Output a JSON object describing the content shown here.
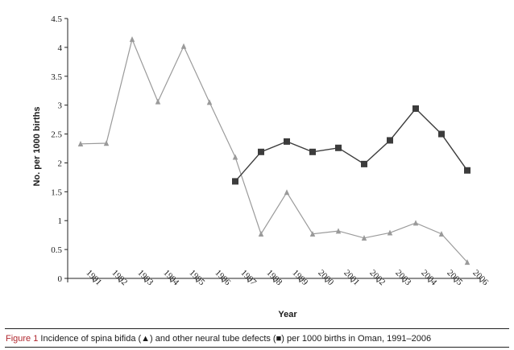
{
  "chart_data": {
    "type": "line",
    "title": "",
    "xlabel": "Year",
    "ylabel": "No. per 1000 births",
    "ylim": [
      0,
      4.5
    ],
    "y_ticks": [
      "0",
      "0.5",
      "1",
      "1.5",
      "2",
      "2.5",
      "3",
      "3.5",
      "4",
      "4.5"
    ],
    "categories": [
      "1991",
      "1992",
      "1993",
      "1994",
      "1995",
      "1996",
      "1997",
      "1998",
      "1999",
      "2000",
      "2001",
      "2002",
      "2003",
      "2004",
      "2005",
      "2006"
    ],
    "series": [
      {
        "marker": "triangle",
        "color": "#9a9a9a",
        "values": [
          2.33,
          2.34,
          4.14,
          3.06,
          4.02,
          3.05,
          2.1,
          0.77,
          1.49,
          0.77,
          0.82,
          0.7,
          0.79,
          0.96,
          0.77,
          0.28
        ]
      },
      {
        "marker": "square",
        "color": "#3c3c3c",
        "values": [
          null,
          null,
          null,
          null,
          null,
          null,
          1.68,
          2.19,
          2.37,
          2.19,
          2.26,
          1.98,
          2.39,
          2.94,
          2.5,
          1.87
        ]
      }
    ],
    "grid": false,
    "legend": "none"
  },
  "caption": {
    "label": "Figure 1",
    "text": "Incidence of spina bifida (▲) and other neural tube defects (■) per 1000 births in Oman, 1991–2006"
  }
}
